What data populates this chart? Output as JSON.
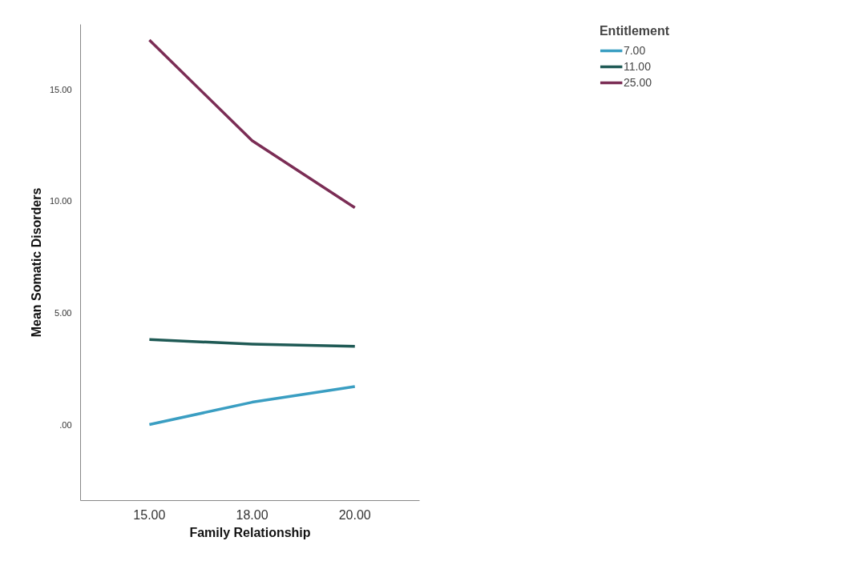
{
  "chart_data": {
    "type": "line",
    "xlabel": "Family Relationship",
    "ylabel": "Mean Somatic Disorders",
    "legend_title": "Entitlement",
    "categories": [
      "15.00",
      "18.00",
      "20.00"
    ],
    "series": [
      {
        "name": "7.00",
        "color": "#3a9ec2",
        "values": [
          0.0,
          1.0,
          1.7
        ]
      },
      {
        "name": "11.00",
        "color": "#1f5a55",
        "values": [
          3.8,
          3.6,
          3.5
        ]
      },
      {
        "name": "25.00",
        "color": "#7b2d55",
        "values": [
          17.2,
          12.7,
          9.7
        ]
      }
    ],
    "ylim": [
      -3.4,
      17.9
    ],
    "yticks": [
      {
        "value": 0,
        "label": ".00"
      },
      {
        "value": 5,
        "label": "5.00"
      },
      {
        "value": 10,
        "label": "10.00"
      },
      {
        "value": 15,
        "label": "15.00"
      }
    ],
    "grid": false,
    "legend": "top right",
    "line_style": "solid",
    "marker": "none"
  }
}
